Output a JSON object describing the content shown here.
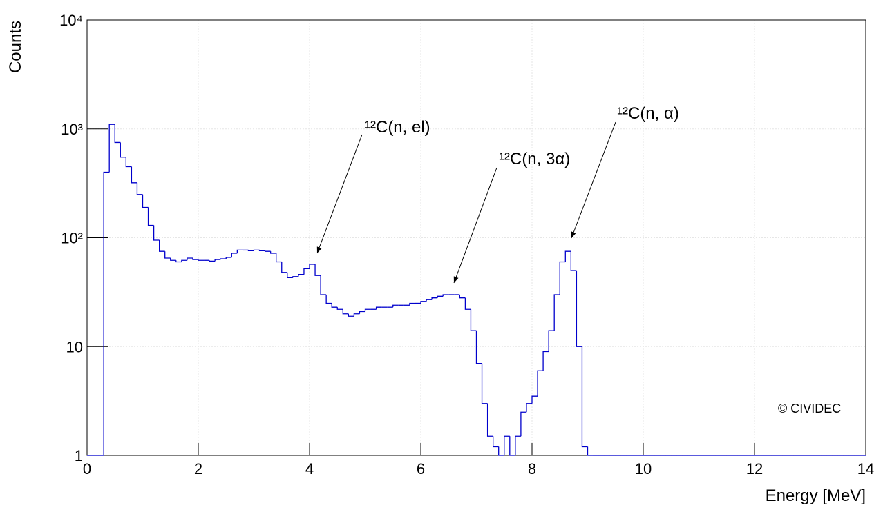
{
  "chart_data": {
    "type": "histogram",
    "title": null,
    "x_label": "Energy [MeV]",
    "y_label": "Counts",
    "log_y": true,
    "grid": true,
    "color": "#0000cc",
    "xlim": [
      0,
      14
    ],
    "xticks": [
      0,
      2,
      4,
      6,
      8,
      10,
      12,
      14
    ],
    "ylim": [
      1,
      10000
    ],
    "yticks": [
      1,
      10,
      {
        "value": 100,
        "label": "10²"
      },
      {
        "value": 1000,
        "label": "10³"
      },
      {
        "value": 10000,
        "label": "10⁴"
      }
    ],
    "bins": [
      0,
      0.1,
      0.2,
      0.3,
      0.4,
      0.5,
      0.6,
      0.7,
      0.8,
      0.9,
      1,
      1.1,
      1.2,
      1.3,
      1.4,
      1.5,
      1.6,
      1.7,
      1.8,
      1.9,
      2,
      2.1,
      2.2,
      2.3,
      2.4,
      2.5,
      2.6,
      2.7,
      2.8,
      2.9,
      3,
      3.1,
      3.2,
      3.3,
      3.4,
      3.5,
      3.6,
      3.7,
      3.8,
      3.9,
      4,
      4.1,
      4.2,
      4.3,
      4.4,
      4.5,
      4.6,
      4.7,
      4.8,
      4.9,
      5,
      5.1,
      5.2,
      5.3,
      5.4,
      5.5,
      5.6,
      5.7,
      5.8,
      5.9,
      6,
      6.1,
      6.2,
      6.3,
      6.4,
      6.5,
      6.6,
      6.7,
      6.8,
      6.9,
      7,
      7.1,
      7.2,
      7.3,
      7.4,
      7.5,
      7.6,
      7.7,
      7.8,
      7.9,
      8,
      8.1,
      8.2,
      8.3,
      8.4,
      8.5,
      8.6,
      8.7,
      8.8,
      8.9,
      9,
      9.1,
      9.2,
      9.3,
      9.4,
      9.5,
      9.6,
      9.7,
      9.8,
      9.9,
      10,
      10.1,
      10.2,
      10.3,
      10.4,
      10.5,
      10.6,
      10.7,
      10.8,
      10.9,
      11,
      11.1,
      11.2,
      11.3,
      11.4,
      11.5,
      11.6,
      11.7,
      11.8,
      11.9,
      12,
      12.1,
      12.2,
      12.3,
      12.4,
      12.5,
      12.6,
      12.7,
      12.8,
      12.9,
      13,
      13.1,
      13.2,
      13.3,
      13.4,
      13.5,
      13.6,
      13.7,
      13.8,
      13.9,
      14
    ],
    "values": [
      0,
      0,
      0,
      400,
      1100,
      750,
      550,
      450,
      320,
      250,
      190,
      130,
      95,
      75,
      65,
      62,
      60,
      62,
      65,
      63,
      62,
      62,
      61,
      63,
      64,
      66,
      72,
      77,
      77,
      76,
      77,
      76,
      75,
      72,
      60,
      48,
      43,
      44,
      46,
      52,
      57,
      45,
      30,
      25,
      23,
      22,
      20,
      19,
      20,
      21,
      22,
      22,
      23,
      23,
      23,
      24,
      24,
      24,
      25,
      25,
      26,
      27,
      28,
      29,
      30,
      30,
      30,
      28,
      22,
      14,
      7,
      3,
      1.5,
      1.2,
      0,
      1.5,
      1,
      1.5,
      2.5,
      3,
      3.5,
      6,
      9,
      14,
      30,
      60,
      75,
      50,
      10,
      1.2,
      0,
      0,
      0,
      0,
      0,
      0,
      0,
      0,
      0,
      0,
      0,
      0,
      0,
      0,
      0,
      0,
      0,
      0,
      0,
      0,
      0,
      0,
      0,
      0,
      0,
      0,
      0,
      0,
      0,
      0,
      0,
      0,
      0,
      0,
      0,
      0,
      0,
      0,
      0,
      0,
      0,
      0,
      0,
      0,
      0,
      0,
      0,
      0,
      0,
      0
    ],
    "annotations": [
      {
        "text": "¹²C(n, el)"
      },
      {
        "text": "¹²C(n, 3α)"
      },
      {
        "text": "¹²C(n, α)"
      },
      {
        "text": "© CIVIDEC"
      }
    ]
  }
}
